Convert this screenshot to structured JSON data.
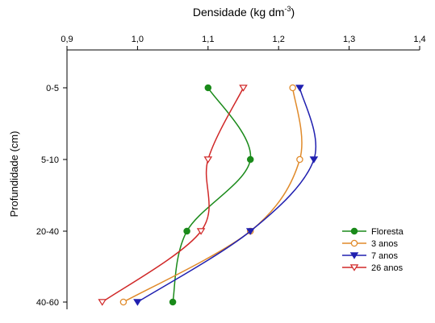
{
  "chart_data": {
    "type": "line",
    "orientation": "vertical-profile",
    "title_main": "Densidade (kg dm",
    "title_sup": "-3",
    "title_end": ")",
    "xlabel": "Densidade (kg dm-3)",
    "ylabel": "Profundidade (cm)",
    "x_axis_position": "top",
    "xlim": [
      0.9,
      1.4
    ],
    "x_ticks": [
      "0,9",
      "1,0",
      "1,1",
      "1,2",
      "1,3",
      "1,4"
    ],
    "x_tick_values": [
      0.9,
      1.0,
      1.1,
      1.2,
      1.3,
      1.4
    ],
    "categories": [
      "0-5",
      "5-10",
      "20-40",
      "40-60"
    ],
    "grid": false,
    "legend_position": "right",
    "series": [
      {
        "name": "Floresta",
        "marker": "filled-circle",
        "color": "#1a8a1a",
        "values": [
          1.1,
          1.16,
          1.07,
          1.05
        ]
      },
      {
        "name": "3 anos",
        "marker": "open-circle",
        "color": "#e08a2a",
        "values": [
          1.22,
          1.23,
          1.16,
          0.98
        ]
      },
      {
        "name": "7 anos",
        "marker": "filled-triangle-down",
        "color": "#2020b0",
        "values": [
          1.23,
          1.25,
          1.16,
          1.0
        ]
      },
      {
        "name": "26 anos",
        "marker": "open-triangle-down",
        "color": "#d02828",
        "values": [
          1.15,
          1.1,
          1.09,
          0.95
        ]
      }
    ]
  }
}
